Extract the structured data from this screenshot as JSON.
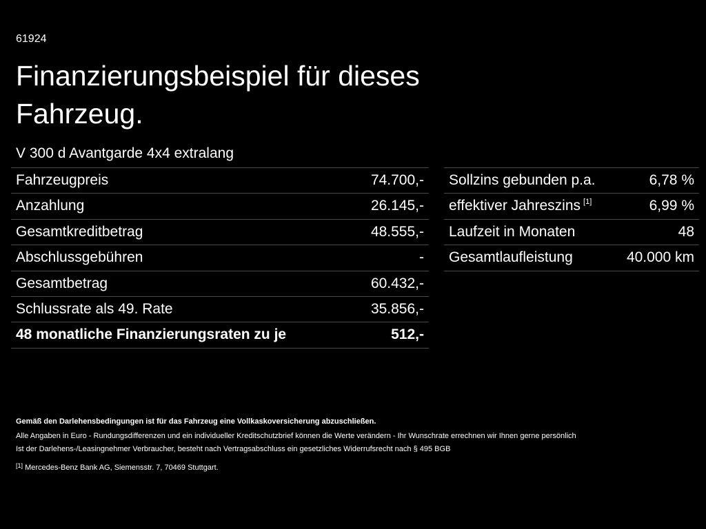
{
  "header": {
    "code": "61924",
    "title_lines": [
      "Finanzierungsbeispiel für dieses",
      "Fahrzeug."
    ],
    "model": "V 300 d Avantgarde 4x4 extralang"
  },
  "left_table": {
    "rows": [
      [
        "Fahrzeugpreis",
        "74.700,-"
      ],
      [
        "Anzahlung",
        "26.145,-"
      ],
      [
        "Gesamtkreditbetrag",
        "48.555,-"
      ],
      [
        "Abschlussgebühren",
        "-"
      ],
      [
        "Gesamtbetrag",
        "60.432,-"
      ],
      [
        "Schlussrate als 49. Rate",
        "35.856,-"
      ],
      [
        "48 monatliche Finanzierungsraten zu je",
        "512,-"
      ]
    ]
  },
  "right_table": {
    "footnote_ref": "[1]",
    "rows": [
      [
        "Sollzins gebunden p.a.",
        "6,78 %"
      ],
      [
        "effektiver Jahreszins",
        "6,99 %"
      ],
      [
        "Laufzeit in Monaten",
        "48"
      ],
      [
        "Gesamtlaufleistung",
        "40.000 km"
      ]
    ]
  },
  "notes": {
    "lines": [
      "Gemäß den Darlehensbedingungen ist für das Fahrzeug eine Vollkaskoversicherung abzuschließen.",
      "Alle Angaben in Euro - Rundungsdifferenzen und ein individueller Kreditschutzbrief können die Werte verändern - Ihr Wunschrate errechnen wir Ihnen gerne persönlich",
      "Ist der Darlehens-/Leasingnehmer Verbraucher, besteht nach Vertragsabschluss ein gesetzliches Widerrufsrecht nach § 495 BGB"
    ],
    "footnote": {
      "marker": "[1]",
      "text": "Mercedes-Benz Bank AG, Siemensstr. 7, 70469 Stuttgart."
    }
  }
}
